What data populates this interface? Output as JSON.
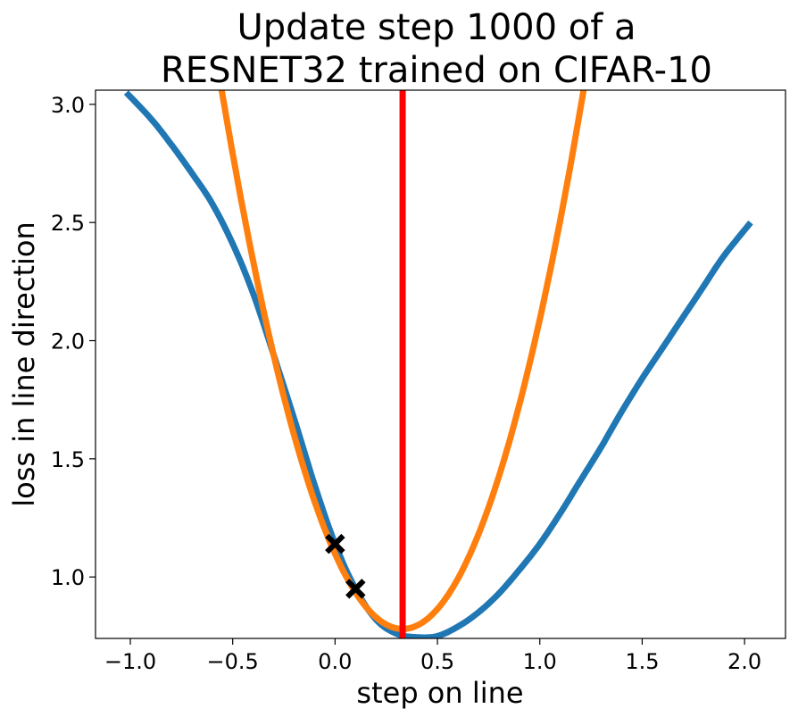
{
  "chart_data": {
    "type": "line",
    "title": [
      "Update step 1000 of a",
      "RESNET32 trained on CIFAR-10"
    ],
    "xlabel": "step on line",
    "ylabel": "loss in line direction",
    "xlim": [
      -1.17,
      2.2
    ],
    "ylim": [
      0.74,
      3.06
    ],
    "x_ticks": [
      -1.0,
      -0.5,
      0.0,
      0.5,
      1.0,
      1.5,
      2.0
    ],
    "x_tick_labels": [
      "−1.0",
      "−0.5",
      "0.0",
      "0.5",
      "1.0",
      "1.5",
      "2.0"
    ],
    "y_ticks": [
      1.0,
      1.5,
      2.0,
      2.5,
      3.0
    ],
    "y_tick_labels": [
      "1.0",
      "1.5",
      "2.0",
      "2.5",
      "3.0"
    ],
    "grid": false,
    "legend": "none",
    "series": [
      {
        "color": "#1f77b4",
        "x": [
          -1.02,
          -0.9,
          -0.8,
          -0.7,
          -0.6,
          -0.5,
          -0.4,
          -0.3,
          -0.2,
          -0.1,
          0.0,
          0.1,
          0.2,
          0.3,
          0.4,
          0.5,
          0.6,
          0.7,
          0.8,
          0.9,
          1.0,
          1.1,
          1.2,
          1.3,
          1.4,
          1.5,
          1.6,
          1.7,
          1.8,
          1.9,
          2.03
        ],
        "y": [
          3.05,
          2.94,
          2.83,
          2.71,
          2.58,
          2.41,
          2.2,
          1.94,
          1.67,
          1.39,
          1.14,
          0.95,
          0.82,
          0.76,
          0.745,
          0.75,
          0.79,
          0.85,
          0.93,
          1.03,
          1.14,
          1.27,
          1.41,
          1.55,
          1.7,
          1.84,
          1.97,
          2.1,
          2.23,
          2.36,
          2.5
        ]
      },
      {
        "color": "#ff7f0e",
        "type": "parabola",
        "a": 2.92,
        "vertex_x": 0.33,
        "vertex_y": 0.78,
        "x_range": [
          -0.6,
          1.3
        ]
      }
    ],
    "vlines": [
      {
        "x": 0.33,
        "color": "#ff0000"
      }
    ],
    "markers": [
      {
        "x": 0.0,
        "y": 1.14,
        "symbol": "X",
        "color": "#000000"
      },
      {
        "x": 0.1,
        "y": 0.95,
        "symbol": "X",
        "color": "#000000"
      }
    ]
  }
}
